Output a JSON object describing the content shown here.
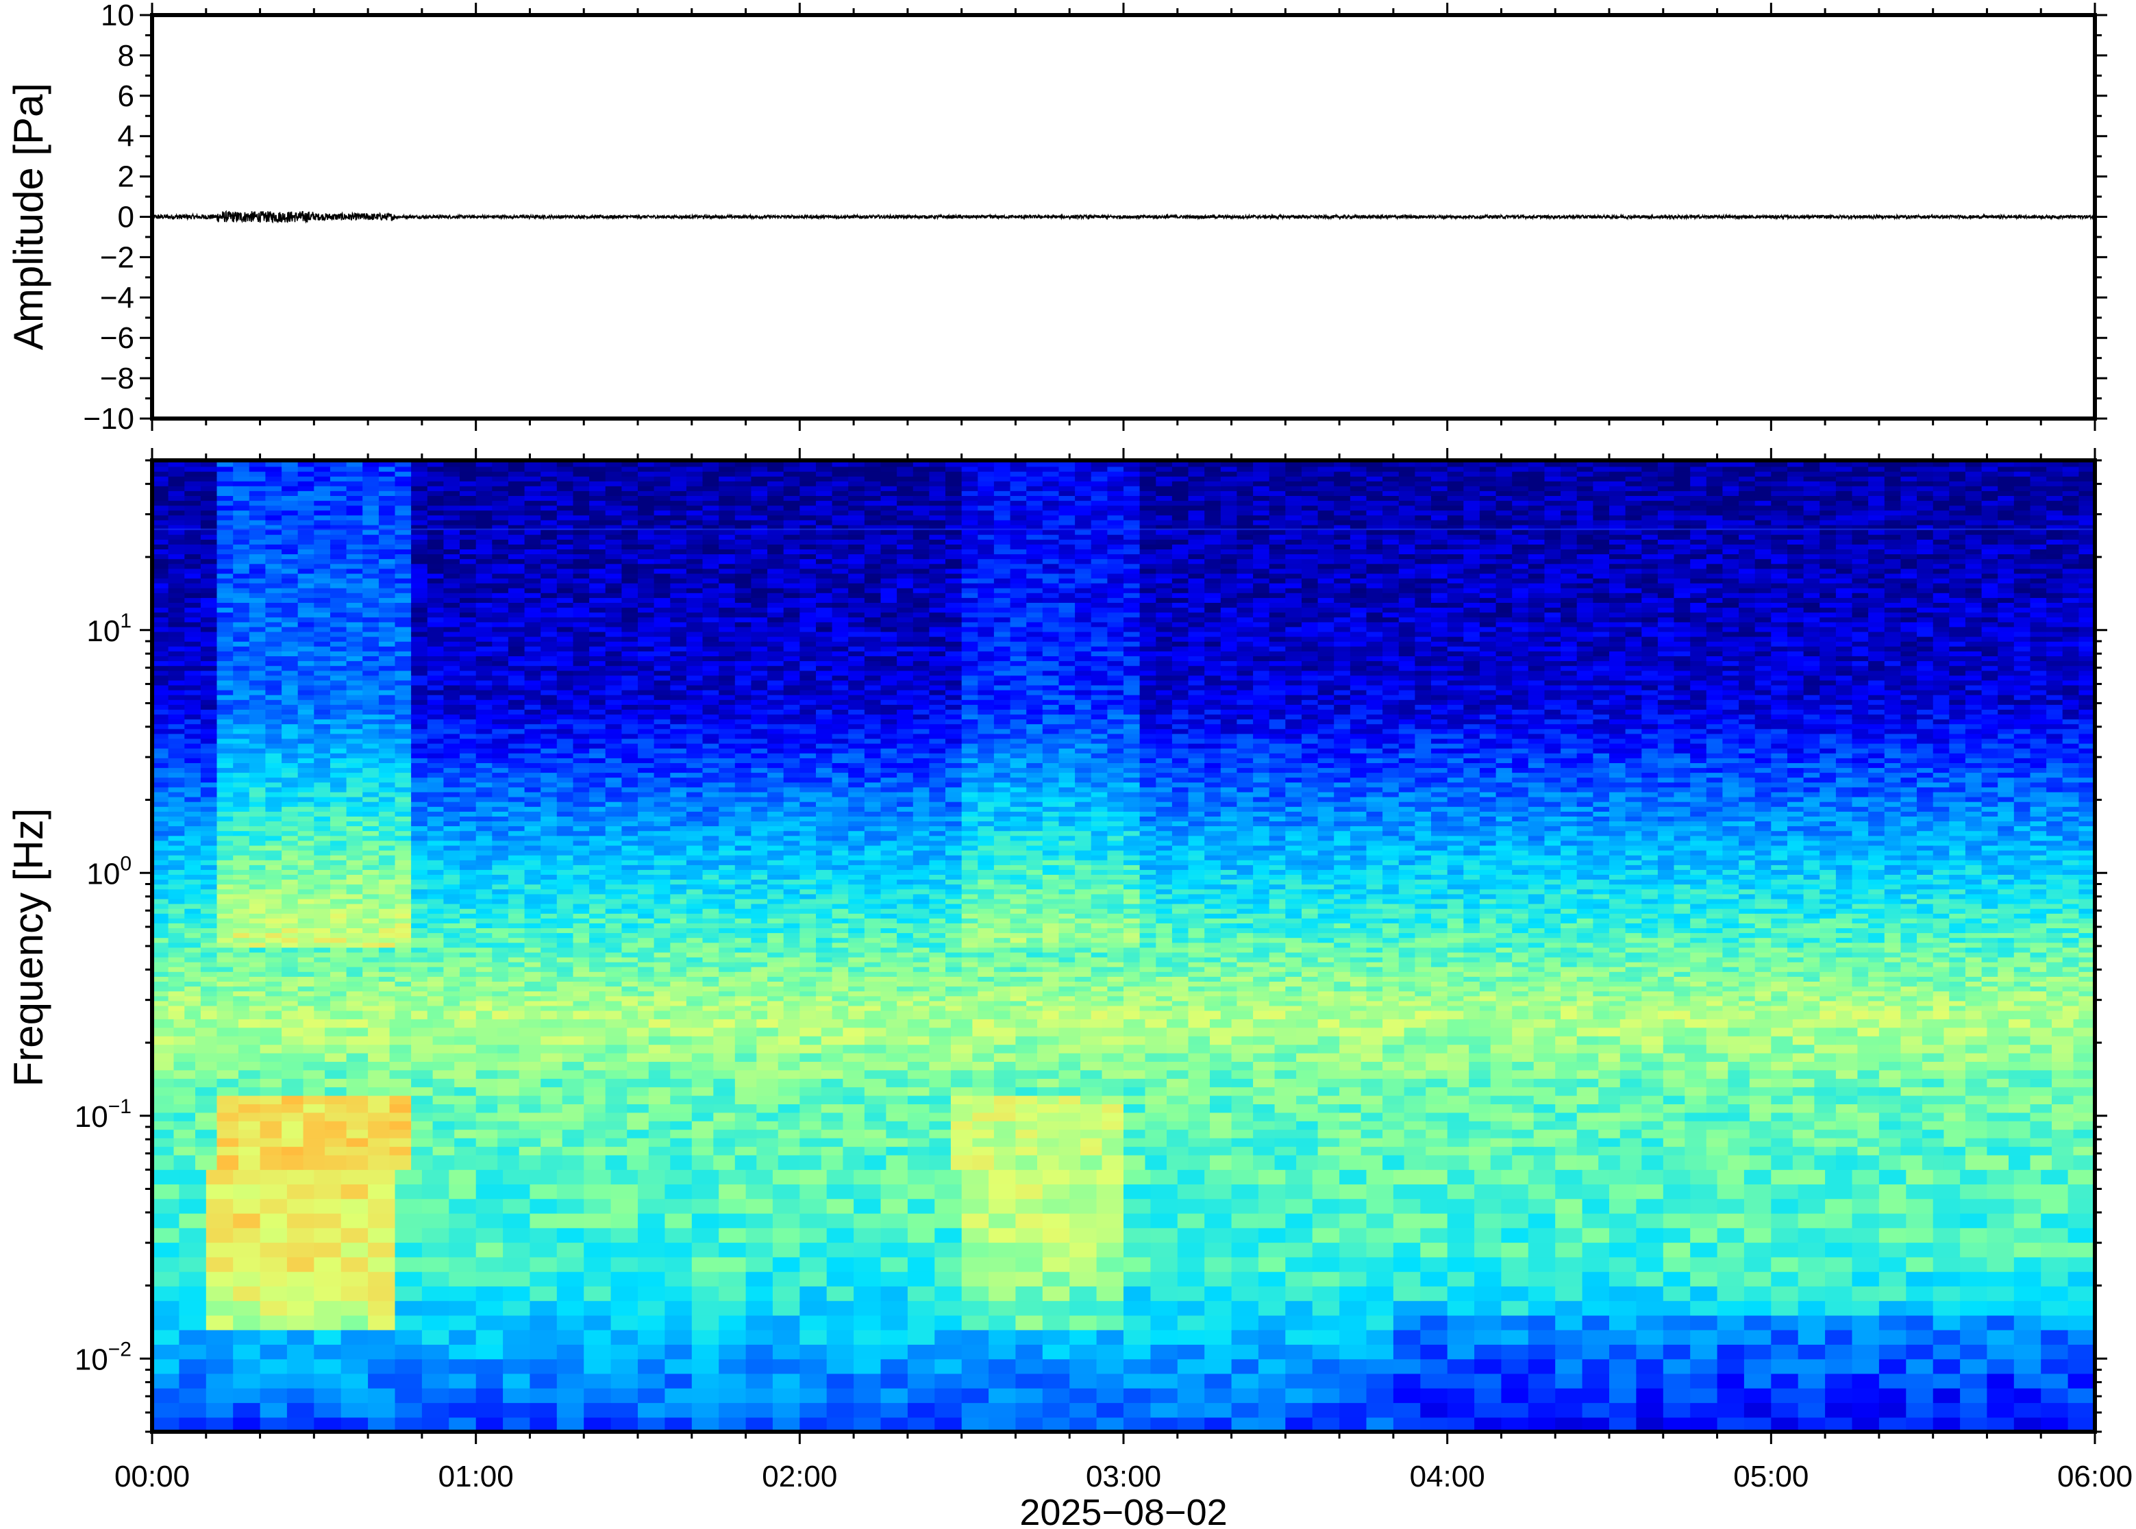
{
  "chart_data": [
    {
      "type": "line",
      "title": "",
      "ylabel": "Amplitude [Pa]",
      "ylim": [
        -10,
        10
      ],
      "y_ticks": [
        "10",
        "8",
        "6",
        "4",
        "2",
        "0",
        "−2",
        "−4",
        "−6",
        "−8",
        "−10"
      ],
      "y_tick_values": [
        10,
        8,
        6,
        4,
        2,
        0,
        -2,
        -4,
        -6,
        -8,
        -10
      ],
      "series_color": "#000000",
      "x_range_minutes": [
        0,
        360
      ],
      "series_note_amplitude": [
        {
          "start_min": 0,
          "end_min": 12,
          "amp": 0.12
        },
        {
          "start_min": 12,
          "end_min": 30,
          "amp": 0.28
        },
        {
          "start_min": 30,
          "end_min": 45,
          "amp": 0.18
        },
        {
          "start_min": 45,
          "end_min": 360,
          "amp": 0.08
        }
      ]
    },
    {
      "type": "heatmap",
      "title": "",
      "ylabel": "Frequency [Hz]",
      "xlabel": "2025−08−02",
      "y_scale": "log",
      "ylim_hz": [
        0.005,
        50
      ],
      "y_ticks": [
        {
          "value": 10,
          "base": "10",
          "exp": "1"
        },
        {
          "value": 1,
          "base": "10",
          "exp": "0"
        },
        {
          "value": 0.1,
          "base": "10",
          "exp": "−1"
        },
        {
          "value": 0.01,
          "base": "10",
          "exp": "−2"
        }
      ],
      "x_ticks": [
        "00:00",
        "01:00",
        "02:00",
        "03:00",
        "04:00",
        "05:00",
        "06:00"
      ],
      "x_tick_minutes": [
        0,
        60,
        120,
        180,
        240,
        300,
        360
      ],
      "colormap": [
        "#00007f",
        "#0000ff",
        "#0080ff",
        "#00e0ff",
        "#7fffa0",
        "#e0ff70",
        "#ffc040",
        "#ff7020",
        "#d00000"
      ],
      "events": [
        {
          "start_min": 12,
          "end_min": 47,
          "strength": 1.0
        },
        {
          "start_min": 150,
          "end_min": 170,
          "strength": 0.55
        },
        {
          "start_min": 165,
          "end_min": 182,
          "strength": 0.5
        }
      ]
    }
  ]
}
